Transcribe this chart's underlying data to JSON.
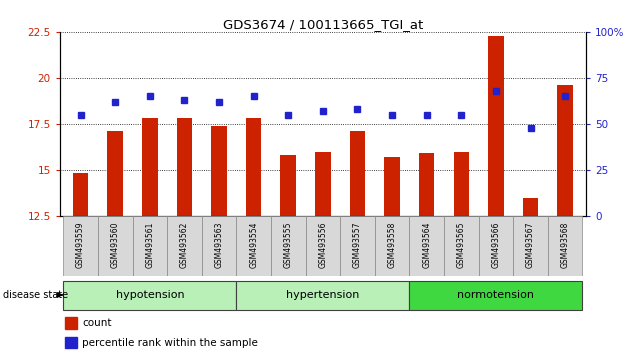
{
  "title": "GDS3674 / 100113665_TGI_at",
  "samples": [
    "GSM493559",
    "GSM493560",
    "GSM493561",
    "GSM493562",
    "GSM493563",
    "GSM493554",
    "GSM493555",
    "GSM493556",
    "GSM493557",
    "GSM493558",
    "GSM493564",
    "GSM493565",
    "GSM493566",
    "GSM493567",
    "GSM493568"
  ],
  "counts": [
    14.85,
    17.1,
    17.8,
    17.8,
    17.4,
    17.8,
    15.8,
    15.95,
    17.1,
    15.7,
    15.9,
    16.0,
    22.3,
    13.5,
    19.6
  ],
  "percentiles": [
    55,
    62,
    65,
    63,
    62,
    65,
    55,
    57,
    58,
    55,
    55,
    55,
    68,
    48,
    65
  ],
  "ylim_left": [
    12.5,
    22.5
  ],
  "ylim_right": [
    0,
    100
  ],
  "yticks_left": [
    12.5,
    15.0,
    17.5,
    20.0,
    22.5
  ],
  "yticks_right": [
    0,
    25,
    50,
    75,
    100
  ],
  "ytick_labels_right": [
    "0",
    "25",
    "50",
    "75",
    "100%"
  ],
  "bar_color": "#cc2200",
  "dot_color": "#2222cc",
  "grid_color": "#000000",
  "bg_color": "#ffffff",
  "label_color_left": "#cc2200",
  "label_color_right": "#2222cc",
  "legend_count_color": "#cc2200",
  "legend_pct_color": "#2222cc",
  "group_hypotension_color": "#b8f0b8",
  "group_hypertension_color": "#b8f0b8",
  "group_normotension_color": "#40d840",
  "group_border_color": "#404040",
  "fig_width": 6.3,
  "fig_height": 3.54,
  "dpi": 100
}
